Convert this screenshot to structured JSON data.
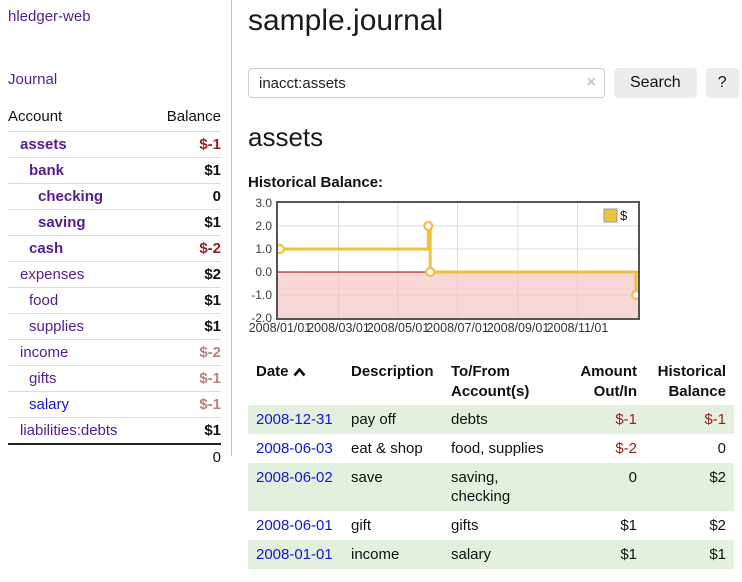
{
  "palette": {
    "link_visited": "#571c8d",
    "link": "#1414d2",
    "negative_strong": "#9b1c20",
    "negative_muted": "#b8827f",
    "row_stripe": "#e4f0de",
    "series_gold": "#edc240",
    "negative_region": "#f5bfbf",
    "zero_line": "#8b0000"
  },
  "sidebar": {
    "brand": "hledger-web",
    "nav": [
      {
        "label": "Journal"
      }
    ],
    "accounts_table": {
      "headers": [
        "Account",
        "Balance"
      ],
      "rows": [
        {
          "account": "assets",
          "balance": "$-1",
          "depth": 1,
          "emphasized": true
        },
        {
          "account": "bank",
          "balance": "$1",
          "depth": 2,
          "emphasized": true
        },
        {
          "account": "checking",
          "balance": "0",
          "depth": 3,
          "emphasized": true
        },
        {
          "account": "saving",
          "balance": "$1",
          "depth": 3,
          "emphasized": true
        },
        {
          "account": "cash",
          "balance": "$-2",
          "depth": 2,
          "emphasized": true
        },
        {
          "account": "expenses",
          "balance": "$2",
          "depth": 1,
          "emphasized": false
        },
        {
          "account": "food",
          "balance": "$1",
          "depth": 2,
          "emphasized": false
        },
        {
          "account": "supplies",
          "balance": "$1",
          "depth": 2,
          "emphasized": false
        },
        {
          "account": "income",
          "balance": "$-2",
          "depth": 1,
          "emphasized": false
        },
        {
          "account": "gifts",
          "balance": "$-1",
          "depth": 2,
          "emphasized": false
        },
        {
          "account": "salary",
          "balance": "$-1",
          "depth": 2,
          "emphasized": false,
          "link_style": "unvisited"
        },
        {
          "account": "liabilities:debts",
          "balance": "$1",
          "depth": 1,
          "emphasized": false
        }
      ],
      "total": "0"
    }
  },
  "main": {
    "title": "sample.journal",
    "search": {
      "value": "inacct:assets",
      "clear_icon": "×",
      "search_button": "Search",
      "help_button": "?"
    },
    "account_heading": "assets",
    "chart_heading": "Historical Balance:"
  },
  "chart_data": {
    "type": "line",
    "step": true,
    "title": "Historical Balance:",
    "series": [
      {
        "name": "$",
        "color": "#edc240",
        "points": [
          [
            "2008-01-01",
            1.0
          ],
          [
            "2008-06-01",
            2.0
          ],
          [
            "2008-06-03",
            0.0
          ],
          [
            "2008-12-31",
            -1.0
          ]
        ]
      }
    ],
    "xrange": [
      "2008-01-01",
      "2008-12-31"
    ],
    "ylim": [
      -2.0,
      3.0
    ],
    "yticks": [
      3.0,
      2.0,
      1.0,
      0.0,
      -1.0,
      -2.0
    ],
    "xticks": [
      "2008/01/01",
      "2008/03/01",
      "2008/05/01",
      "2008/07/01",
      "2008/09/01",
      "2008/11/01"
    ],
    "legend": {
      "label": "$",
      "position": "top-right"
    },
    "grid": true,
    "negative_region_color": "#f5bfbf",
    "zero_line_color": "#8b0000"
  },
  "register": {
    "headers": [
      {
        "label": "Date",
        "sort_icon": "chevron-up"
      },
      {
        "label": "Description"
      },
      {
        "label": "To/From Account(s)"
      },
      {
        "label": "Amount Out/In",
        "align": "right"
      },
      {
        "label": "Historical Balance",
        "align": "right"
      }
    ],
    "rows": [
      {
        "date": "2008-12-31",
        "description": "pay off",
        "accounts": "debts",
        "amount": "$-1",
        "balance": "$-1"
      },
      {
        "date": "2008-06-03",
        "description": "eat & shop",
        "accounts": "food, supplies",
        "amount": "$-2",
        "balance": "0"
      },
      {
        "date": "2008-06-02",
        "description": "save",
        "accounts": "saving, checking",
        "amount": "0",
        "balance": "$2"
      },
      {
        "date": "2008-06-01",
        "description": "gift",
        "accounts": "gifts",
        "amount": "$1",
        "balance": "$2"
      },
      {
        "date": "2008-01-01",
        "description": "income",
        "accounts": "salary",
        "amount": "$1",
        "balance": "$1"
      }
    ]
  }
}
